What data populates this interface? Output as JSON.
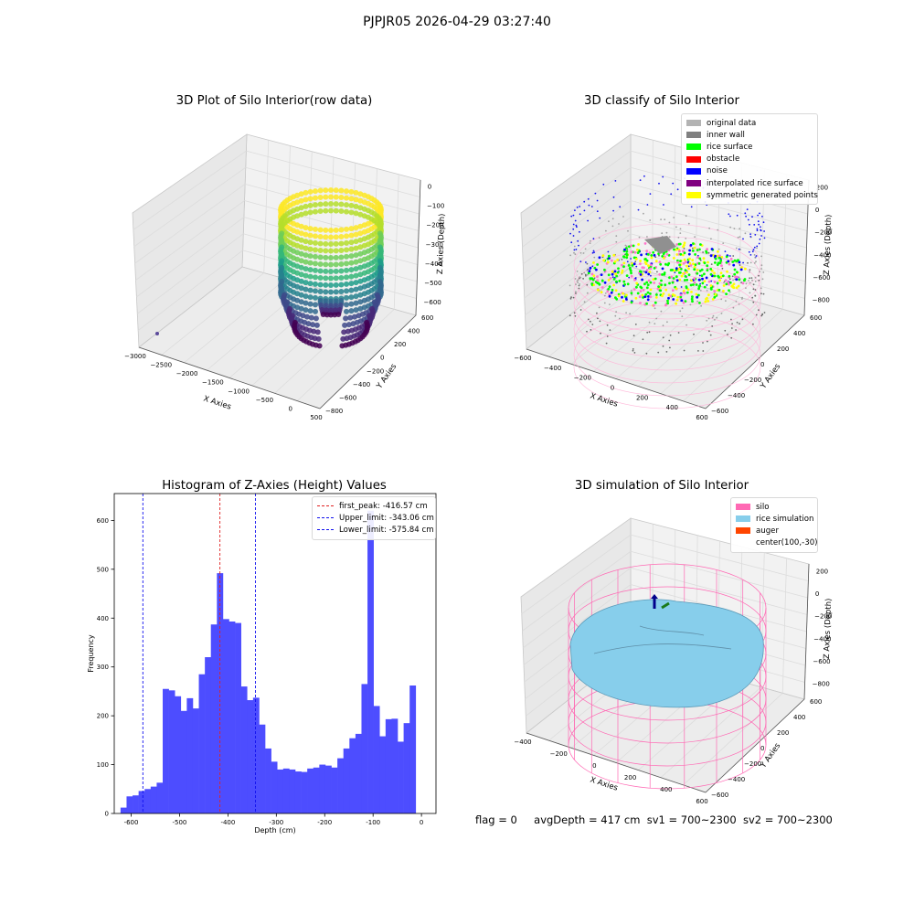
{
  "figure": {
    "suptitle": "PJPJR05 2026-04-29 03:27:40",
    "status_line": {
      "flag": "flag = 0",
      "avg_depth": "avgDepth = 417 cm",
      "sv1": "sv1 = 700~2300",
      "sv2": "sv2 = 700~2300"
    }
  },
  "chart_data": [
    {
      "type": "scatter",
      "title": "3D Plot of Silo Interior(row data)",
      "xlabel": "X Axies",
      "ylabel": "Y Axies",
      "zlabel": "Z Axies (Depth)",
      "x_ticks": [
        "−3000",
        "−2500",
        "−2000",
        "−1500",
        "−1000",
        "−500",
        "0",
        "500"
      ],
      "y_ticks": [
        "−800",
        "−600",
        "−400",
        "−200",
        "0",
        "200",
        "400",
        "600"
      ],
      "z_ticks": [
        "0",
        "−100",
        "−200",
        "−300",
        "−400",
        "−500",
        "−600"
      ],
      "colormap": "viridis"
    },
    {
      "type": "scatter",
      "title": "3D classify of Silo Interior",
      "xlabel": "X Axies",
      "ylabel": "Y Axies",
      "zlabel": "Z Axies (Depth)",
      "x_ticks": [
        "−600",
        "−400",
        "−200",
        "0",
        "200",
        "400",
        "600"
      ],
      "y_ticks": [
        "−600",
        "−400",
        "−200",
        "0",
        "200",
        "400",
        "600"
      ],
      "z_ticks": [
        "200",
        "0",
        "−200",
        "−400",
        "−600",
        "−800"
      ],
      "legend": [
        {
          "label": "original data",
          "color": "#b3b3b3"
        },
        {
          "label": "inner wall",
          "color": "#808080"
        },
        {
          "label": "rice surface",
          "color": "#00ff00"
        },
        {
          "label": "obstacle",
          "color": "#ff0000"
        },
        {
          "label": "noise",
          "color": "#0000ff"
        },
        {
          "label": "interpolated rice surface",
          "color": "#800080"
        },
        {
          "label": "symmetric generated points",
          "color": "#ffff00"
        }
      ]
    },
    {
      "type": "bar",
      "title": "Histogram of Z-Axies (Height) Values",
      "xlabel": "Depth (cm)",
      "ylabel": "Frequency",
      "xlim": [
        -635,
        30
      ],
      "ylim": [
        0,
        655
      ],
      "x_ticks": [
        -600,
        -500,
        -400,
        -300,
        -200,
        -100,
        0
      ],
      "y_ticks": [
        0,
        100,
        200,
        300,
        400,
        500,
        600
      ],
      "bin_start": -622,
      "bin_width": 12.45,
      "values": [
        12,
        35,
        37,
        46,
        50,
        55,
        63,
        255,
        252,
        240,
        210,
        236,
        215,
        285,
        320,
        387,
        492,
        398,
        393,
        390,
        260,
        232,
        237,
        182,
        133,
        106,
        90,
        92,
        90,
        86,
        85,
        92,
        94,
        100,
        98,
        94,
        113,
        133,
        154,
        163,
        265,
        620,
        220,
        158,
        193,
        194,
        147,
        185,
        262
      ],
      "bar_color": "#4d4dff",
      "vlines": [
        {
          "label": "first_peak: -416.57 cm",
          "x": -416.57,
          "color": "#e02020"
        },
        {
          "label": "Upper_limit: -343.06 cm",
          "x": -343.06,
          "color": "#1010ee"
        },
        {
          "label": "Lower_limit: -575.84 cm",
          "x": -575.84,
          "color": "#1010ee"
        }
      ]
    },
    {
      "type": "area",
      "title": "3D simulation of Silo Interior",
      "xlabel": "X Axies",
      "ylabel": "Y Axies",
      "zlabel": "Z Axies (Depth)",
      "x_ticks": [
        "−400",
        "−200",
        "0",
        "200",
        "400",
        "600"
      ],
      "y_ticks": [
        "−600",
        "−400",
        "−200",
        "0",
        "200",
        "400",
        "600"
      ],
      "z_ticks": [
        "200",
        "0",
        "−200",
        "−400",
        "−600",
        "−800"
      ],
      "legend": [
        {
          "label": "silo",
          "color": "#ff69b4"
        },
        {
          "label": "rice simulation",
          "color": "#87ceeb"
        },
        {
          "label": "auger",
          "color": "#ff4500"
        },
        {
          "label": "center(100,-30)",
          "color": ""
        }
      ]
    }
  ]
}
